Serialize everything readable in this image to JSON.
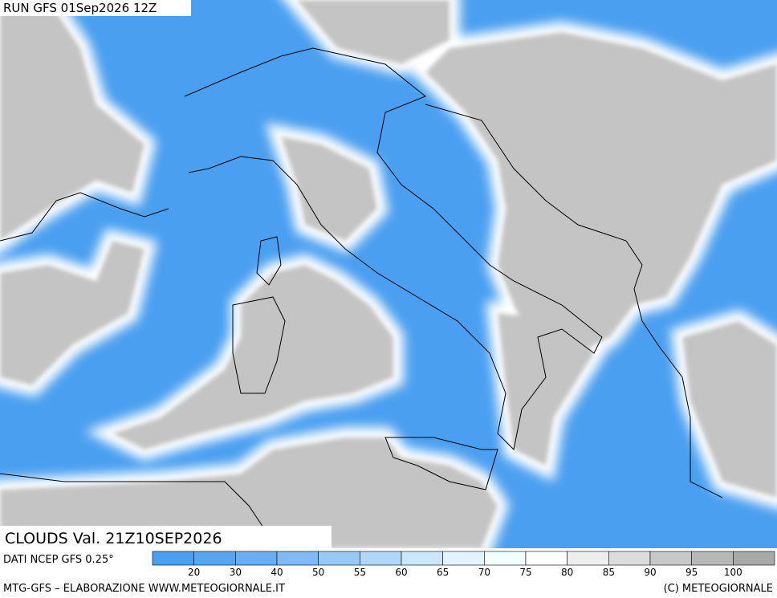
{
  "header": {
    "run": "RUN GFS 01Sep2026 12Z"
  },
  "map": {
    "field_label": "CLOUDS Val. 21Z10SEP2026",
    "source": "DATI NCEP GFS 0.25°"
  },
  "legend": {
    "levels": [
      20,
      30,
      40,
      50,
      55,
      60,
      65,
      70,
      75,
      80,
      85,
      90,
      95,
      100
    ],
    "colors": [
      "#4a9ff0",
      "#58a6f1",
      "#69aef2",
      "#7fbaf4",
      "#98c8f6",
      "#b0d6f8",
      "#cbe6fa",
      "#e2f4fd",
      "#f2fdff",
      "#ffffff",
      "#eeeeee",
      "#dcdcdc",
      "#c8c8c8",
      "#b8b8b8",
      "#a8a8a8"
    ]
  },
  "footer": {
    "left": "MTG-GFS – ELABORAZIONE WWW.METEOGIORNALE.IT",
    "right": "(C) METEOGIORNALE"
  }
}
